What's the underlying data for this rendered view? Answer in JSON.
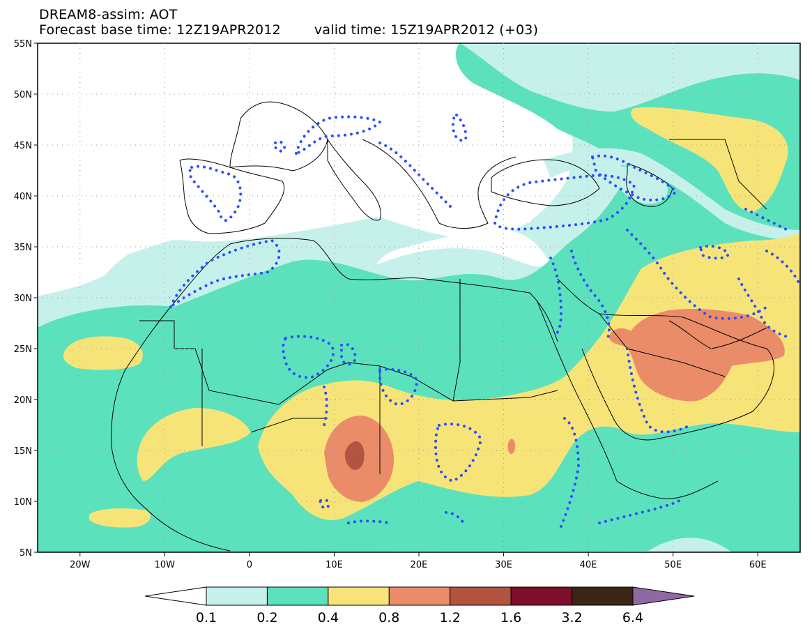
{
  "header": {
    "title": "DREAM8-assim: AOT",
    "base_time": "Forecast base time: 12Z19APR2012",
    "valid_time": "valid time: 15Z19APR2012 (+03)"
  },
  "map": {
    "lat_labels": [
      "55N",
      "50N",
      "45N",
      "40N",
      "35N",
      "30N",
      "25N",
      "20N",
      "15N",
      "10N",
      "5N"
    ],
    "lon_labels": [
      "20W",
      "10W",
      "0",
      "10E",
      "20E",
      "30E",
      "40E",
      "50E",
      "60E"
    ]
  },
  "colorbar": {
    "labels": [
      "0.1",
      "0.2",
      "0.4",
      "0.8",
      "1.2",
      "1.6",
      "3.2",
      "6.4"
    ],
    "colors": [
      "#ffffff",
      "#c6f1ea",
      "#5ce1bd",
      "#f7e479",
      "#eb8c68",
      "#b25440",
      "#7d0e2c",
      "#3a2616",
      "#8f6aa2"
    ]
  },
  "palette": {
    "light": "#c6f1ea",
    "green": "#5ce1bd",
    "yellow": "#f7e479",
    "orange": "#eb8c68",
    "brown": "#b25440",
    "rain_contour": "#2a4dff"
  }
}
